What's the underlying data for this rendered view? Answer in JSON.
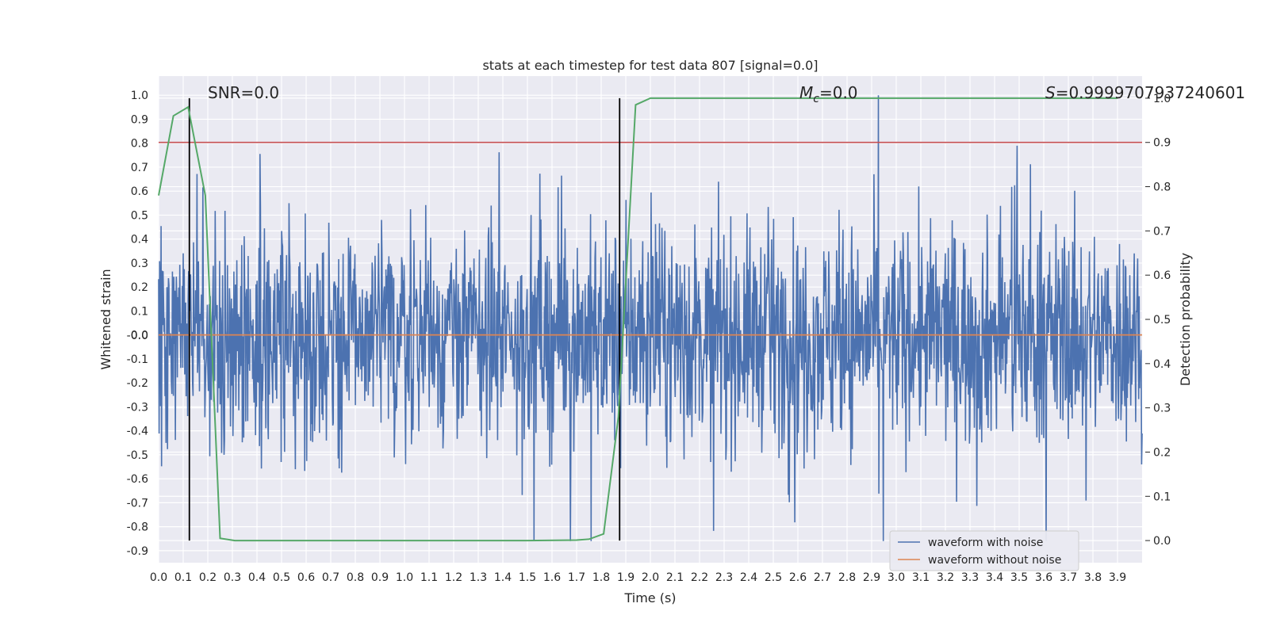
{
  "chart_data": {
    "type": "line",
    "title": "stats at each timestep for test data 807 [signal=0.0]",
    "xlabel": "Time (s)",
    "ylabel": "Whitened strain",
    "y2label": "Detection probability",
    "xlim": [
      0.0,
      4.0
    ],
    "ylim": [
      -0.95,
      1.08
    ],
    "y2lim": [
      -0.05,
      1.05
    ],
    "grid": true,
    "legend_position": "lower-right",
    "x_ticks": [
      "0.0",
      "0.1",
      "0.2",
      "0.3",
      "0.4",
      "0.5",
      "0.6",
      "0.7",
      "0.8",
      "0.9",
      "1.0",
      "1.1",
      "1.2",
      "1.3",
      "1.4",
      "1.5",
      "1.6",
      "1.7",
      "1.8",
      "1.9",
      "2.0",
      "2.1",
      "2.2",
      "2.3",
      "2.4",
      "2.5",
      "2.6",
      "2.7",
      "2.8",
      "2.9",
      "3.0",
      "3.1",
      "3.2",
      "3.3",
      "3.4",
      "3.5",
      "3.6",
      "3.7",
      "3.8",
      "3.9"
    ],
    "y_ticks": [
      "1.0",
      "0.9",
      "0.8",
      "0.7",
      "0.6",
      "0.5",
      "0.4",
      "0.3",
      "0.2",
      "0.1",
      "0.0",
      "-0.0",
      "-0.1",
      "-0.2",
      "-0.3",
      "-0.4",
      "-0.5",
      "-0.6",
      "-0.7",
      "-0.8",
      "-0.9"
    ],
    "y2_ticks": [
      "1.0",
      "0.9",
      "0.8",
      "0.7",
      "0.6",
      "0.5",
      "0.4",
      "0.3",
      "0.2",
      "0.1",
      "0.0"
    ],
    "annotations": {
      "snr": "SNR=0.0",
      "mc_symbol": "M",
      "mc_sub": "c",
      "mc_value": "=0.0",
      "s_symbol": "S",
      "s_value": "=0.9999707937240601"
    },
    "series": [
      {
        "name": "waveform with noise",
        "color": "#4c72b0",
        "noise_range": [
          -0.86,
          1.0
        ]
      },
      {
        "name": "waveform without noise",
        "color": "#dd8452",
        "constant": 0.0
      },
      {
        "color": "#55a868",
        "x": [
          0.0,
          0.06,
          0.12,
          0.19,
          0.25,
          0.31,
          0.5,
          1.0,
          1.5,
          1.7,
          1.75,
          1.81,
          1.87,
          1.94,
          2.0,
          2.5,
          3.0,
          3.5,
          3.9
        ],
        "y": [
          0.78,
          0.96,
          0.98,
          0.78,
          0.005,
          0.0,
          0.0,
          0.0,
          0.0,
          0.001,
          0.003,
          0.015,
          0.28,
          0.985,
          1.0,
          1.0,
          1.0,
          1.0,
          1.0
        ]
      }
    ],
    "reference_lines": {
      "threshold_y2": 0.9,
      "threshold_color": "#c44e52",
      "vertical_x": [
        0.125,
        1.875
      ],
      "vertical_color": "#000000"
    }
  }
}
